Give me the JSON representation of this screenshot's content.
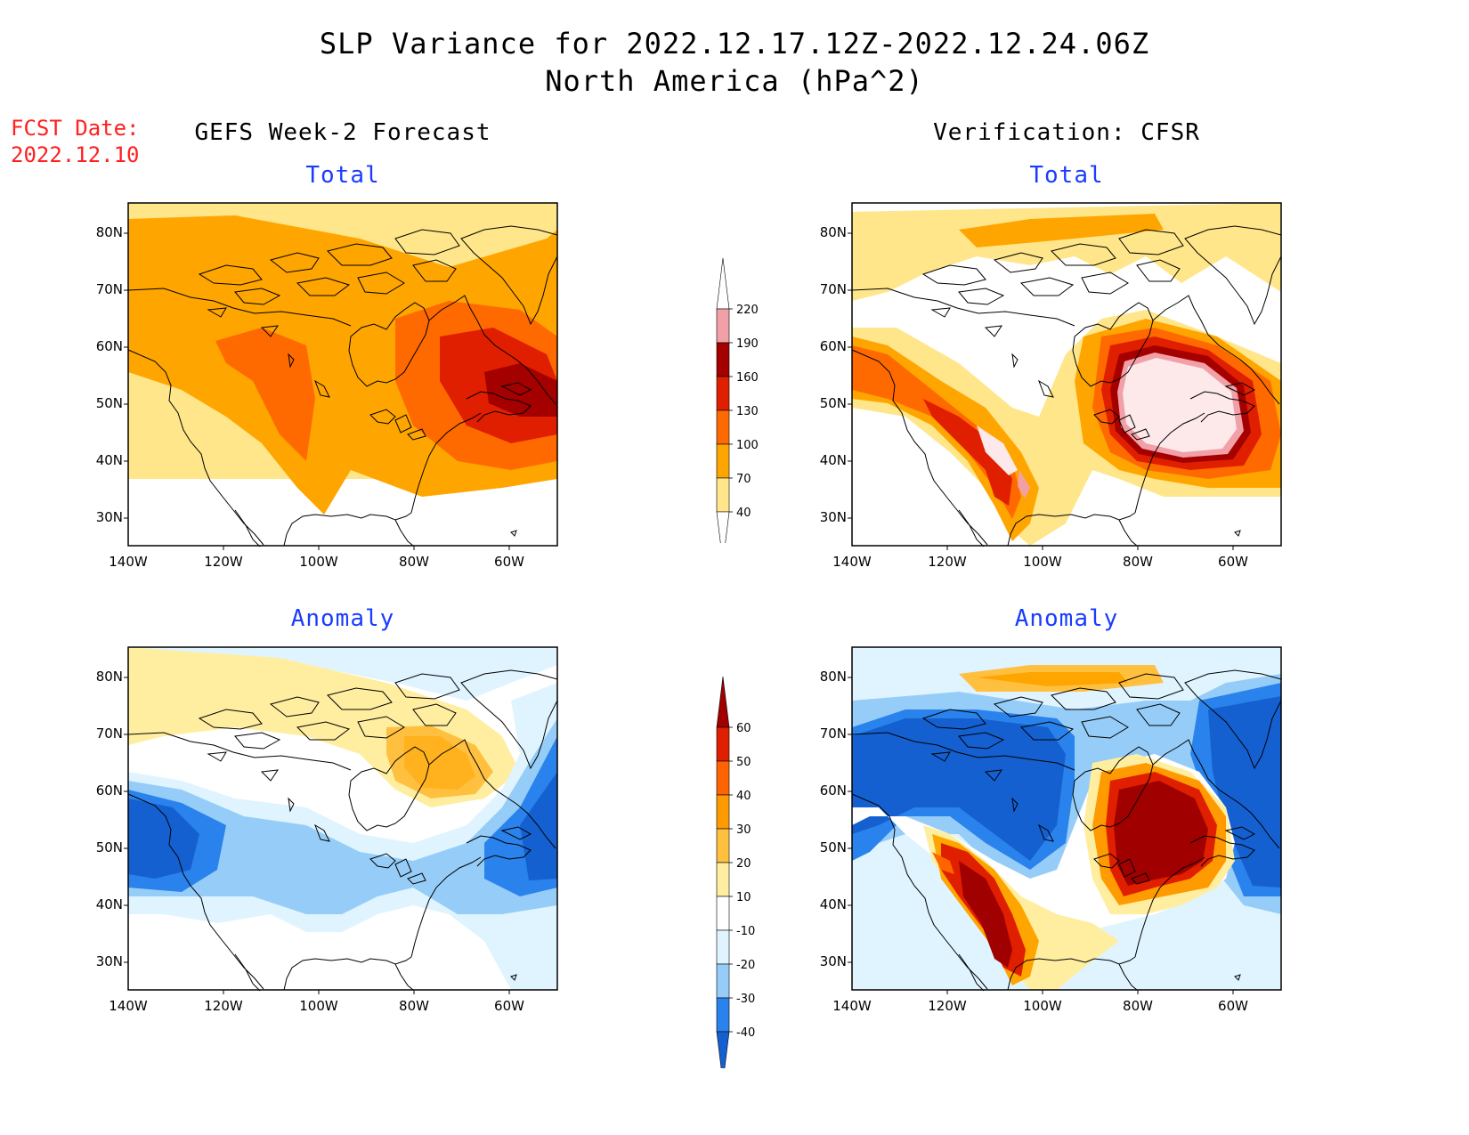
{
  "title": {
    "line1": "SLP Variance for 2022.12.17.12Z-2022.12.24.06Z",
    "line2": "North America (hPa^2)"
  },
  "fcst_date": {
    "label": "FCST Date:",
    "value": "2022.12.10"
  },
  "columns": {
    "left": "GEFS Week-2 Forecast",
    "right": "Verification: CFSR"
  },
  "panels": {
    "forecast_total": {
      "title": "Total"
    },
    "verification_total": {
      "title": "Total"
    },
    "forecast_anomaly": {
      "title": "Anomaly"
    },
    "verification_anomaly": {
      "title": "Anomaly"
    }
  },
  "axes": {
    "lon_labels": [
      "140W",
      "120W",
      "100W",
      "80W",
      "60W"
    ],
    "lat_labels": [
      "80N",
      "70N",
      "60N",
      "50N",
      "40N",
      "30N"
    ],
    "lon_range": [
      -140,
      -50
    ],
    "lat_range": [
      25,
      85
    ]
  },
  "colorbars": {
    "total": {
      "levels": [
        "40",
        "70",
        "100",
        "130",
        "160",
        "190",
        "220"
      ],
      "colors": [
        "#ffffff",
        "#ffe68a",
        "#ffa500",
        "#ff6a00",
        "#e01e00",
        "#a50000",
        "#f2a0a8",
        "#fde8ea"
      ]
    },
    "anomaly": {
      "levels": [
        "-40",
        "-30",
        "-20",
        "-10",
        "10",
        "20",
        "30",
        "40",
        "50",
        "60"
      ],
      "colors": [
        "#1460d0",
        "#2a82ec",
        "#96cdf8",
        "#dff4ff",
        "#ffffff",
        "#ffeea0",
        "#ffc040",
        "#ff9a00",
        "#ff6400",
        "#e01e00",
        "#a00000"
      ]
    }
  }
}
